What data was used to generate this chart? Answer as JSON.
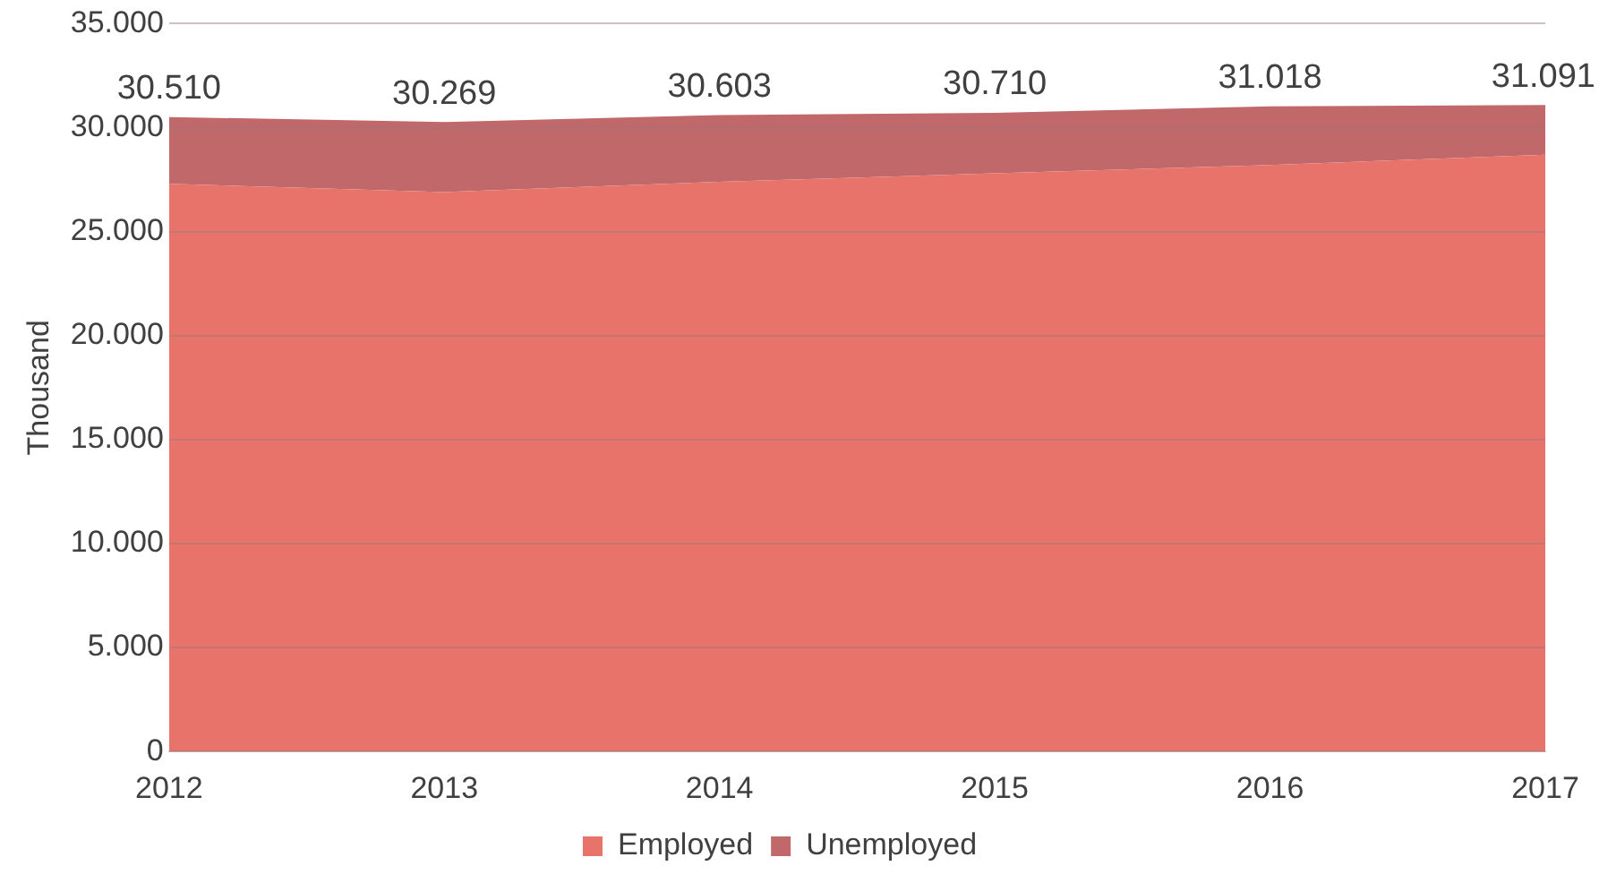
{
  "chart_data": {
    "type": "area",
    "ylabel": "Thousand",
    "stacked": true,
    "categories": [
      "2012",
      "2013",
      "2014",
      "2015",
      "2016",
      "2017"
    ],
    "series": [
      {
        "name": "Employed",
        "color": "#e8736a",
        "values": [
          27300,
          26900,
          27400,
          27800,
          28200,
          28700
        ]
      },
      {
        "name": "Unemployed",
        "color": "#c0686a",
        "values": [
          3210,
          3369,
          3203,
          2910,
          2818,
          2391
        ]
      }
    ],
    "totals": [
      "30.510",
      "30.269",
      "30.603",
      "30.710",
      "31.018",
      "31.091"
    ],
    "ylim": [
      0,
      35000
    ],
    "yticks": [
      {
        "value": 0,
        "label": "0"
      },
      {
        "value": 5000,
        "label": "5.000"
      },
      {
        "value": 10000,
        "label": "10.000"
      },
      {
        "value": 15000,
        "label": "15.000"
      },
      {
        "value": 20000,
        "label": "20.000"
      },
      {
        "value": 25000,
        "label": "25.000"
      },
      {
        "value": 30000,
        "label": "30.000"
      },
      {
        "value": 35000,
        "label": "35.000"
      }
    ],
    "grid": "y",
    "legend": "bottom"
  }
}
